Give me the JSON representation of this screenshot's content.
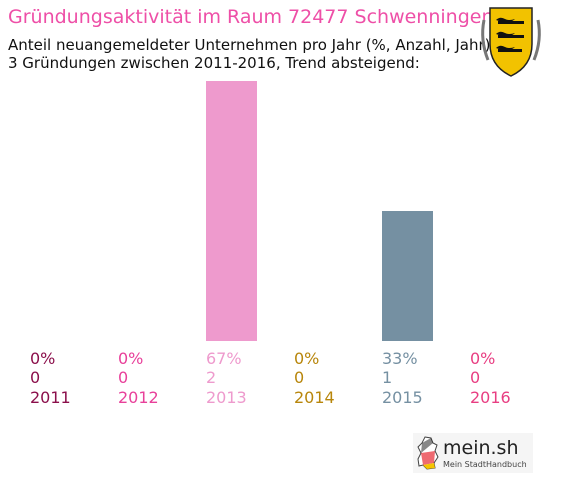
{
  "header": {
    "title": "Gründungsaktivität im Raum 72477 Schwenningen",
    "subtitle_line1": "Anteil neuangemeldeter Unternehmen pro Jahr (%, Anzahl, Jahr)",
    "subtitle_line2": "3 Gründungen zwischen 2011-2016, Trend absteigend:",
    "title_color": "#ee4fa7"
  },
  "coat_of_arms": {
    "icon": "baden-wuerttemberg-coat-of-arms-icon"
  },
  "chart_data": {
    "type": "bar",
    "categories": [
      "2011",
      "2012",
      "2013",
      "2014",
      "2015",
      "2016"
    ],
    "values": [
      0,
      0,
      2,
      0,
      1,
      0
    ],
    "percent_labels": [
      "0%",
      "0%",
      "67%",
      "0%",
      "33%",
      "0%"
    ],
    "count_labels": [
      "0",
      "0",
      "2",
      "0",
      "1",
      "0"
    ],
    "colors": [
      "#8b0f4b",
      "#e8409a",
      "#ee9acd",
      "#b8860b",
      "#7590a2",
      "#e83e82"
    ],
    "ylim": [
      0,
      2
    ],
    "grid": false,
    "legend": "none"
  },
  "logo": {
    "brand": "mein.sh",
    "tagline": "Mein StadtHandbuch",
    "icon": "germany-map-icon"
  }
}
